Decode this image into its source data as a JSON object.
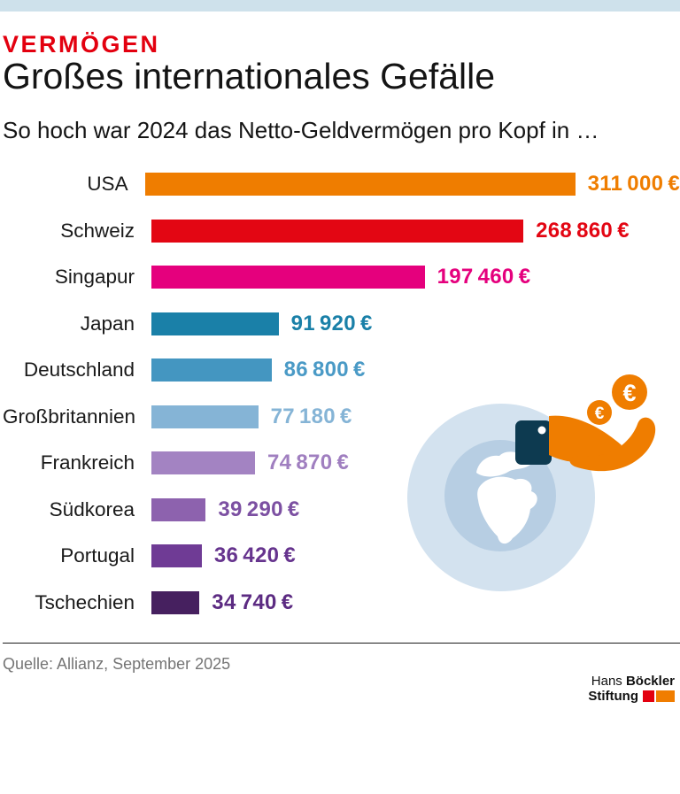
{
  "page": {
    "background": "#ffffff",
    "top_band_color": "#cee1eb"
  },
  "header": {
    "kicker": "VERMÖGEN",
    "kicker_color": "#e3000f",
    "title": "Großes internationales Gefälle",
    "subtitle": "So hoch war 2024 das Netto-Geldvermögen pro Kopf in …"
  },
  "chart_data": {
    "type": "bar",
    "orientation": "horizontal",
    "title": "Großes internationales Gefälle",
    "subtitle": "So hoch war 2024 das Netto-Geldvermögen pro Kopf in …",
    "unit": "EUR",
    "xlim": [
      0,
      311000
    ],
    "grid": false,
    "legend": false,
    "categories": [
      "USA",
      "Schweiz",
      "Singapur",
      "Japan",
      "Deutschland",
      "Großbritannien",
      "Frankreich",
      "Südkorea",
      "Portugal",
      "Tschechien"
    ],
    "values": [
      311000,
      268860,
      197460,
      91920,
      86800,
      77180,
      74870,
      39290,
      36420,
      34740
    ],
    "value_labels": [
      "311 000 €",
      "268 860 €",
      "197 460 €",
      "91 920 €",
      "86 800 €",
      "77 180 €",
      "74 870 €",
      "39 290 €",
      "36 420 €",
      "34 740 €"
    ],
    "bar_colors": [
      "#ef7d00",
      "#e30613",
      "#e5007d",
      "#1a80a8",
      "#4496c1",
      "#85b4d6",
      "#a383c2",
      "#8d62ae",
      "#6f3b95",
      "#46205f"
    ],
    "value_label_colors": [
      "#ef7d00",
      "#e30613",
      "#e5007d",
      "#1a80a8",
      "#4a9ac6",
      "#85b4d6",
      "#a07fc0",
      "#7c50a2",
      "#66348e",
      "#5c2b82"
    ]
  },
  "illustration": {
    "name": "globe-hand-euro-coins",
    "colors": {
      "globe_outer": "#d3e2ef",
      "globe_inner": "#b7cee3",
      "continents": "#ffffff",
      "phone": "#0d3a50",
      "hand": "#ef7d00",
      "coin": "#ef7d00",
      "coin_symbol_large": "€",
      "coin_symbol_small": "€"
    }
  },
  "footer": {
    "source": "Quelle: Allianz, September 2025",
    "logo": {
      "line1_regular": "Hans",
      "line1_bold": "Böckler",
      "line2_bold": "Stiftung",
      "red": "#e3000f",
      "orange": "#f07d00"
    }
  }
}
